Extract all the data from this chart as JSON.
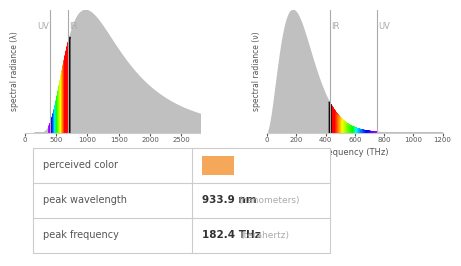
{
  "peak_wavelength_nm": 933.9,
  "peak_frequency_THz": 182.4,
  "perceived_color": "#F5A85A",
  "color_label": "perceived color",
  "wavelength_label": "peak wavelength",
  "frequency_label": "peak frequency",
  "wavelength_value": "933.9 nm",
  "wavelength_unit": "(nanometers)",
  "frequency_value": "182.4 THz",
  "frequency_unit": "(terahertz)",
  "background_color": "#ffffff",
  "grid_color": "#cccccc",
  "text_color": "#555555",
  "label_color": "#aaaaaa",
  "uv_ir_color": "#aaaaaa",
  "wavelength_xlim": [
    0,
    2800
  ],
  "wavelength_xticks": [
    0,
    500,
    1000,
    1500,
    2000,
    2500
  ],
  "frequency_xlim": [
    0,
    1200
  ],
  "frequency_xticks": [
    0,
    200,
    400,
    600,
    800,
    1000,
    1200
  ],
  "uv_boundary_nm": 400,
  "ir_boundary_nm": 700,
  "uv_boundary_THz": 750,
  "ir_boundary_THz": 430
}
